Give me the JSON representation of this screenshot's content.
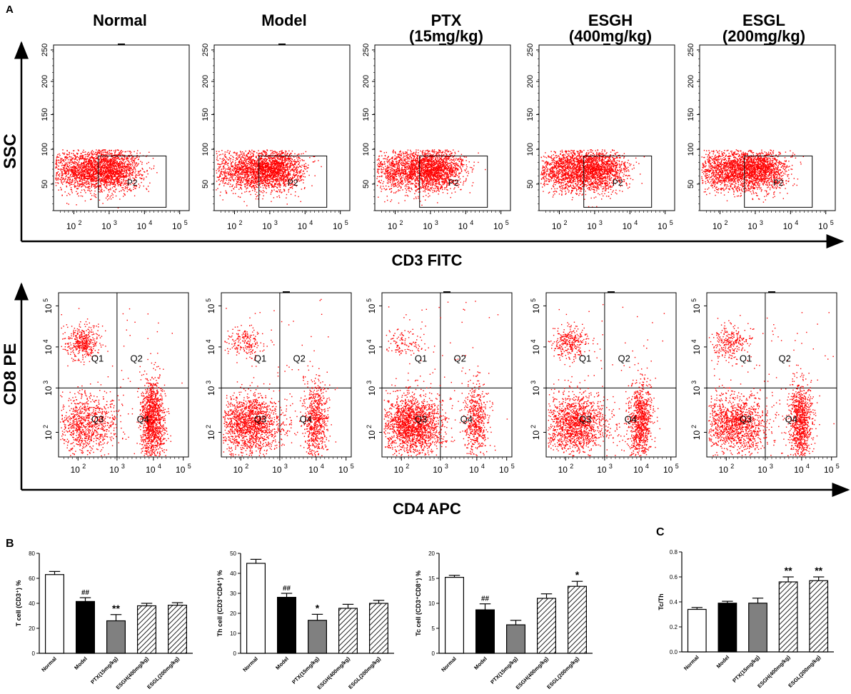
{
  "panel_labels": {
    "a": "A",
    "b": "B",
    "c": "C"
  },
  "groups": [
    {
      "line1": "Normal",
      "line2": ""
    },
    {
      "line1": "Model",
      "line2": ""
    },
    {
      "line1": "PTX",
      "line2": "(15mg/kg)"
    },
    {
      "line1": "ESGH",
      "line2": "(400mg/kg)"
    },
    {
      "line1": "ESGL",
      "line2": "(200mg/kg)"
    }
  ],
  "row1": {
    "y_axis_title": "SSC",
    "x_axis_title": "CD3 FITC",
    "y_ticks": [
      "50",
      "100",
      "150",
      "200",
      "250"
    ],
    "x_ticks": [
      "10",
      "10",
      "10",
      "10"
    ],
    "x_tick_exp": [
      "2",
      "3",
      "4",
      "5"
    ],
    "gate_label": "P2"
  },
  "row2": {
    "y_axis_title": "CD8 PE",
    "x_axis_title": "CD4 APC",
    "y_ticks": [
      "10",
      "10",
      "10",
      "10"
    ],
    "y_tick_exp": [
      "2",
      "3",
      "4",
      "5"
    ],
    "x_ticks": [
      "10",
      "10",
      "10",
      "10"
    ],
    "x_tick_exp": [
      "2",
      "3",
      "4",
      "5"
    ],
    "quadrants": [
      "Q1",
      "Q2",
      "Q3",
      "Q4"
    ]
  },
  "chart_data": [
    {
      "type": "bar",
      "title": "",
      "ylabel": "T cell (CD3⁺) %",
      "categories": [
        "Normal",
        "Model",
        "PTX(15mg/kg)",
        "ESGH(400mg/kg)",
        "ESGL(200mg/kg)"
      ],
      "values": [
        63,
        41.5,
        26,
        38,
        38.5
      ],
      "errors": [
        2.5,
        3,
        5,
        2,
        2
      ],
      "annotations": [
        "",
        "##",
        "**",
        "",
        ""
      ],
      "ylim": [
        0,
        80
      ],
      "yticks": [
        "0",
        "20",
        "40",
        "60",
        "80"
      ]
    },
    {
      "type": "bar",
      "title": "",
      "ylabel": "Th cell (CD3⁺CD4⁺) %",
      "categories": [
        "Normal",
        "Model",
        "PTX(15mg/kg)",
        "ESGH(400mg/kg)",
        "ESGL(200mg/kg)"
      ],
      "values": [
        45,
        28,
        16.5,
        22.5,
        25
      ],
      "errors": [
        2,
        2,
        3,
        2,
        1.5
      ],
      "annotations": [
        "",
        "##",
        "*",
        "",
        ""
      ],
      "ylim": [
        0,
        50
      ],
      "yticks": [
        "0",
        "10",
        "20",
        "30",
        "40",
        "50"
      ]
    },
    {
      "type": "bar",
      "title": "",
      "ylabel": "Tc cell (CD3⁺CD8⁺) %",
      "categories": [
        "Normal",
        "Model",
        "PTX(15mg/kg)",
        "ESGH(400mg/kg)",
        "ESGL(200mg/kg)"
      ],
      "values": [
        15.2,
        8.7,
        5.7,
        11,
        13.4
      ],
      "errors": [
        0.4,
        1.2,
        0.9,
        0.9,
        1
      ],
      "annotations": [
        "",
        "##",
        "",
        "",
        "*"
      ],
      "ylim": [
        0,
        20
      ],
      "yticks": [
        "0",
        "5",
        "10",
        "15",
        "20"
      ]
    },
    {
      "type": "bar",
      "title": "",
      "ylabel": "Tc/Th",
      "categories": [
        "Normal",
        "Model",
        "PTX(15mg/kg)",
        "ESGH(400mg/kg)",
        "ESGL(200mg/kg)"
      ],
      "values": [
        0.34,
        0.39,
        0.39,
        0.56,
        0.57
      ],
      "errors": [
        0.015,
        0.015,
        0.04,
        0.04,
        0.03
      ],
      "annotations": [
        "",
        "",
        "",
        "**",
        "**"
      ],
      "ylim": [
        0,
        0.8
      ],
      "yticks": [
        "0.0",
        "0.2",
        "0.4",
        "0.6",
        "0.8"
      ]
    }
  ]
}
